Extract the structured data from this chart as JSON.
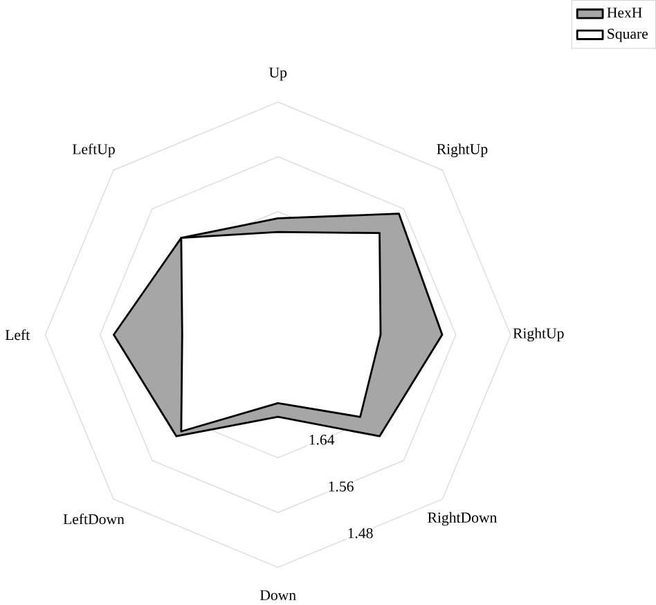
{
  "chart_data": {
    "type": "radar",
    "categories": [
      "Up",
      "RightUp",
      "RightUp",
      "RightDown",
      "Down",
      "LeftDown",
      "Left",
      "LeftUp"
    ],
    "series": [
      {
        "name": "HexH",
        "color": "#a6a6a6",
        "values": [
          1.65,
          1.57,
          1.58,
          1.61,
          1.7,
          1.61,
          1.58,
          1.62
        ]
      },
      {
        "name": "Square",
        "color": "#ffffff",
        "values": [
          1.67,
          1.61,
          1.67,
          1.65,
          1.72,
          1.62,
          1.68,
          1.62
        ]
      }
    ],
    "ylim": [
      1.82,
      1.48
    ],
    "yticks": [
      1.48,
      1.56,
      1.64
    ],
    "grid": true,
    "legend": "top right"
  }
}
